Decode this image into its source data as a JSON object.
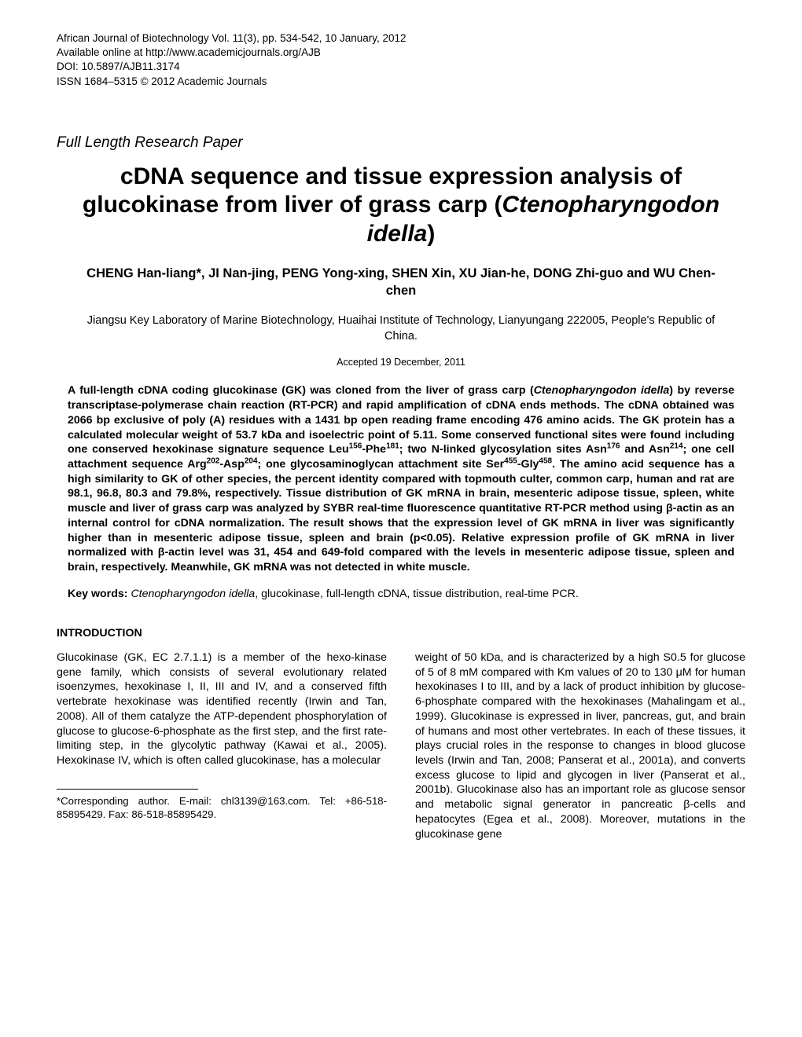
{
  "header": {
    "line1": "African Journal of Biotechnology Vol. 11(3), pp. 534-542, 10 January, 2012",
    "line2": "Available online at http://www.academicjournals.org/AJB",
    "line3": "DOI: 10.5897/AJB11.3174",
    "line4": "ISSN 1684–5315 © 2012 Academic Journals"
  },
  "paper_type": "Full Length Research Paper",
  "title": {
    "part1": "cDNA sequence and tissue expression analysis of glucokinase from liver of grass carp (",
    "species": "Ctenopharyngodon idella",
    "part2": ")"
  },
  "authors": "CHENG Han-liang*, JI Nan-jing, PENG Yong-xing, SHEN Xin, XU Jian-he, DONG Zhi-guo and WU Chen-chen",
  "affiliation": "Jiangsu Key Laboratory of Marine Biotechnology, Huaihai Institute of Technology, Lianyungang 222005, People's Republic of China.",
  "accepted": "Accepted 19 December, 2011",
  "abstract": {
    "p1a": "A full-length cDNA coding glucokinase (GK) was cloned from the liver of grass carp (",
    "species1": "Ctenopharyngodon idella",
    "p1b": ") by reverse transcriptase-polymerase chain reaction (RT-PCR) and rapid amplification of cDNA ends methods. The cDNA obtained was 2066 bp exclusive of poly (A) residues with a 1431 bp open reading frame encoding 476 amino acids. The GK protein has a calculated molecular weight of 53.7 kDa and isoelectric point of 5.11. Some conserved functional sites were found including one conserved hexokinase signature sequence Leu",
    "sup1": "156",
    "p1c": "-Phe",
    "sup2": "181",
    "p1d": "; two N-linked glycosylation sites Asn",
    "sup3": "176",
    "p1e": " and Asn",
    "sup4": "214",
    "p1f": "; one cell attachment sequence Arg",
    "sup5": "202",
    "p1g": "-Asp",
    "sup6": "204",
    "p1h": "; one glycosaminoglycan attachment site Ser",
    "sup7": "455",
    "p1i": "-Gly",
    "sup8": "458",
    "p1j": ". The amino acid sequence has a high similarity to GK of other species, the percent identity compared with topmouth culter, common carp, human and rat are 98.1, 96.8, 80.3 and 79.8%, respectively. Tissue distribution of GK mRNA in brain, mesenteric adipose tissue, spleen, white muscle and liver of grass carp was analyzed by SYBR real-time fluorescence quantitative RT-PCR method using β-actin as an internal control for cDNA normalization. The result shows that the expression level of GK mRNA in liver was significantly higher than in mesenteric adipose tissue, spleen and brain (p<0.05). Relative expression profile of GK mRNA in liver normalized with β-actin level was 31, 454 and 649-fold compared with the levels in mesenteric adipose tissue, spleen and brain, respectively. Meanwhile, GK mRNA was not detected in white muscle."
  },
  "keywords": {
    "label": "Key words:",
    "species": "Ctenopharyngodon idella",
    "rest": ", glucokinase, full-length cDNA, tissue distribution, real-time PCR."
  },
  "section_heading": "INTRODUCTION",
  "intro_col1": "Glucokinase (GK, EC 2.7.1.1) is a member of the hexo-kinase gene family, which consists of several evolutionary related isoenzymes, hexokinase I, II, III and IV, and a conserved fifth vertebrate hexokinase was identified recently (Irwin and Tan, 2008). All of them catalyze the ATP-dependent phosphorylation of glucose to glucose-6-phosphate as the first step, and the first rate-limiting step, in the glycolytic pathway (Kawai et al., 2005). Hexokinase IV, which is often called glucokinase, has  a  molecular",
  "intro_col2": "weight of 50 kDa, and is characterized by a high S0.5 for glucose of 5 of 8 mM compared with Km values of 20 to 130 μM for human hexokinases I to III, and by a lack of product inhibition by glucose-6-phosphate compared with the hexokinases (Mahalingam et al., 1999). Glucokinase is expressed in liver, pancreas, gut, and brain of humans and most other vertebrates. In each of these tissues, it plays crucial roles in the response to changes in blood glucose levels (Irwin and Tan, 2008; Panserat et al., 2001a), and converts excess glucose to lipid and glycogen in liver (Panserat et al., 2001b). Glucokinase also has an important role as glucose sensor and metabolic signal generator in pancreatic β-cells and hepatocytes (Egea et al., 2008). Moreover, mutations in  the  glucokinase  gene",
  "footnote": "*Corresponding author. E-mail: chl3139@163.com. Tel: +86-518-85895429. Fax: 86-518-85895429."
}
